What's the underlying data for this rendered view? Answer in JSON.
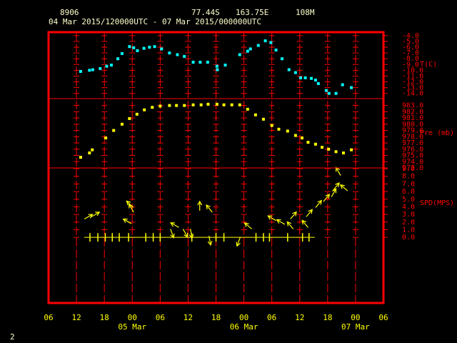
{
  "header": {
    "station": "8906",
    "lat": "77.44S",
    "lon": "163.75E",
    "elev": "108M",
    "period": "04 Mar 2015/120000UTC - 07 Mar 2015/000000UTC",
    "page": "2"
  },
  "x_axis": {
    "xlim": [
      0,
      72
    ],
    "xticks": [
      {
        "value": 0,
        "label": "06"
      },
      {
        "value": 6,
        "label": "12"
      },
      {
        "value": 12,
        "label": "18"
      },
      {
        "value": 18,
        "label": "00"
      },
      {
        "value": 24,
        "label": "06"
      },
      {
        "value": 30,
        "label": "12"
      },
      {
        "value": 36,
        "label": "18"
      },
      {
        "value": 42,
        "label": "00"
      },
      {
        "value": 48,
        "label": "06"
      },
      {
        "value": 54,
        "label": "12"
      },
      {
        "value": 60,
        "label": "18"
      },
      {
        "value": 66,
        "label": "00"
      },
      {
        "value": 72,
        "label": "06"
      }
    ],
    "dates": [
      {
        "value": 18,
        "label": "05 Mar"
      },
      {
        "value": 42,
        "label": "06 Mar"
      },
      {
        "value": 66,
        "label": "07 Mar"
      }
    ]
  },
  "chart_data": [
    {
      "type": "scatter",
      "ylabel": "T(C)",
      "color": "#00ffff",
      "x": [
        6.9,
        8.8,
        9.5,
        11.1,
        12.5,
        13.5,
        14.9,
        15.8,
        17.4,
        18.3,
        19.1,
        20.5,
        21.7,
        22.8,
        24.3,
        26.0,
        27.7,
        29.2,
        31.1,
        32.6,
        34.2,
        36.2,
        36.3,
        38.0,
        41.1,
        42.8,
        43.4,
        45.1,
        46.6,
        47.8,
        48.9,
        50.2,
        51.7,
        53.1,
        54.2,
        55.2,
        56.5,
        57.4,
        58.0,
        59.7,
        60.3,
        61.8,
        63.2,
        65.1
      ],
      "values": [
        -10.2,
        -10.0,
        -9.9,
        -9.7,
        -9.3,
        -9.1,
        -8.0,
        -7.1,
        -5.9,
        -6.1,
        -6.6,
        -6.2,
        -6.0,
        -5.9,
        -6.3,
        -7.0,
        -7.3,
        -7.6,
        -8.6,
        -8.6,
        -8.6,
        -9.3,
        -9.9,
        -9.1,
        -7.3,
        -6.7,
        -6.3,
        -5.7,
        -4.9,
        -5.2,
        -6.5,
        -8.0,
        -9.9,
        -10.4,
        -11.3,
        -11.3,
        -11.4,
        -11.7,
        -12.3,
        -13.5,
        -14.0,
        -14.0,
        -12.5,
        -13.0
      ],
      "ylim": [
        -14.9,
        -3.4
      ],
      "yticks": [
        {
          "value": -4,
          "label": "-4.0"
        },
        {
          "value": -5,
          "label": "-5.0"
        },
        {
          "value": -6,
          "label": "-6.0"
        },
        {
          "value": -7,
          "label": "-7.0"
        },
        {
          "value": -8,
          "label": "-8.0"
        },
        {
          "value": -9,
          "label": "-9.0"
        },
        {
          "value": -10,
          "label": "-10.0"
        },
        {
          "value": -11,
          "label": "-11.0"
        },
        {
          "value": -12,
          "label": "-12.0"
        },
        {
          "value": -13,
          "label": "-13.0"
        },
        {
          "value": -14,
          "label": "-14.0"
        }
      ]
    },
    {
      "type": "scatter",
      "ylabel": "Pre (mb)",
      "color": "#ffff00",
      "x": [
        6.9,
        8.8,
        9.4,
        12.3,
        14.0,
        15.8,
        17.4,
        19.0,
        20.6,
        22.3,
        24.0,
        26.0,
        27.5,
        29.2,
        31.1,
        32.8,
        34.3,
        36.2,
        37.7,
        39.4,
        41.1,
        42.8,
        44.5,
        46.2,
        48.0,
        49.5,
        51.4,
        53.1,
        54.5,
        55.8,
        57.4,
        58.8,
        60.2,
        61.8,
        63.4,
        65.1
      ],
      "values": [
        974.7,
        975.4,
        975.9,
        977.8,
        979.0,
        980.0,
        980.9,
        981.6,
        982.3,
        982.7,
        982.9,
        983.0,
        983.0,
        983.0,
        983.1,
        983.1,
        983.2,
        983.2,
        983.1,
        983.1,
        983.1,
        982.4,
        981.5,
        980.8,
        979.8,
        979.2,
        978.9,
        978.2,
        977.8,
        977.1,
        976.8,
        976.3,
        976.0,
        975.6,
        975.4,
        975.9
      ],
      "ylim": [
        973.0,
        984.1
      ],
      "yticks": [
        {
          "value": 983,
          "label": "983.0"
        },
        {
          "value": 982,
          "label": "982.0"
        },
        {
          "value": 981,
          "label": "981.0"
        },
        {
          "value": 980,
          "label": "980.0"
        },
        {
          "value": 979,
          "label": "979.0"
        },
        {
          "value": 978,
          "label": "978.0"
        },
        {
          "value": 977,
          "label": "977.0"
        },
        {
          "value": 976,
          "label": "976.0"
        },
        {
          "value": 975,
          "label": "975.0"
        },
        {
          "value": 974,
          "label": "974.0"
        },
        {
          "value": 973,
          "label": "973.0"
        }
      ]
    },
    {
      "type": "wind",
      "ylabel": "SPD(MPS)",
      "color": "#ffff00",
      "x": [
        7.7,
        9.2,
        18.2,
        18.3,
        17.8,
        26.2,
        28.0,
        28.9,
        30.5,
        32.5,
        35.2,
        34.5,
        41.2,
        43.7,
        48.9,
        50.8,
        52.0,
        52.6,
        55.4,
        55.8,
        57.4,
        59.1,
        60.8,
        61.2,
        62.8,
        64.3
      ],
      "values": [
        2.4,
        2.7,
        3.9,
        3.3,
        1.8,
        1.1,
        1.3,
        1.1,
        1.1,
        3.5,
        3.3,
        0.2,
        0.0,
        1.1,
        2.2,
        1.7,
        2.4,
        1.1,
        2.7,
        1.3,
        3.9,
        4.7,
        5.3,
        6.2,
        8.1,
        6.1
      ],
      "directions": [
        60,
        60,
        315,
        330,
        300,
        160,
        300,
        150,
        170,
        0,
        320,
        170,
        200,
        310,
        300,
        300,
        40,
        320,
        40,
        320,
        40,
        40,
        30,
        40,
        330,
        310
      ],
      "calm_x": [
        8.9,
        10.6,
        12.2,
        13.7,
        15.2,
        17.2,
        20.9,
        22.5,
        24.0,
        30.8,
        36.0,
        37.7,
        44.6,
        46.2,
        47.5,
        51.4,
        54.6,
        56.0
      ],
      "calm_values": [
        0,
        0,
        0,
        0,
        0,
        0,
        0,
        0,
        0,
        0,
        0,
        0,
        0,
        0,
        0,
        0,
        0,
        0
      ],
      "ylim": [
        -8.6,
        9.1
      ],
      "yticks": [
        {
          "value": 0,
          "label": "0.0"
        },
        {
          "value": 1,
          "label": "1.0"
        },
        {
          "value": 2,
          "label": "2.0"
        },
        {
          "value": 3,
          "label": "3.0"
        },
        {
          "value": 4,
          "label": "4.0"
        },
        {
          "value": 5,
          "label": "5.0"
        },
        {
          "value": 6,
          "label": "6.0"
        },
        {
          "value": 7,
          "label": "7.0"
        },
        {
          "value": 8,
          "label": "8.0"
        },
        {
          "value": 9,
          "label": "9.0"
        }
      ]
    }
  ]
}
